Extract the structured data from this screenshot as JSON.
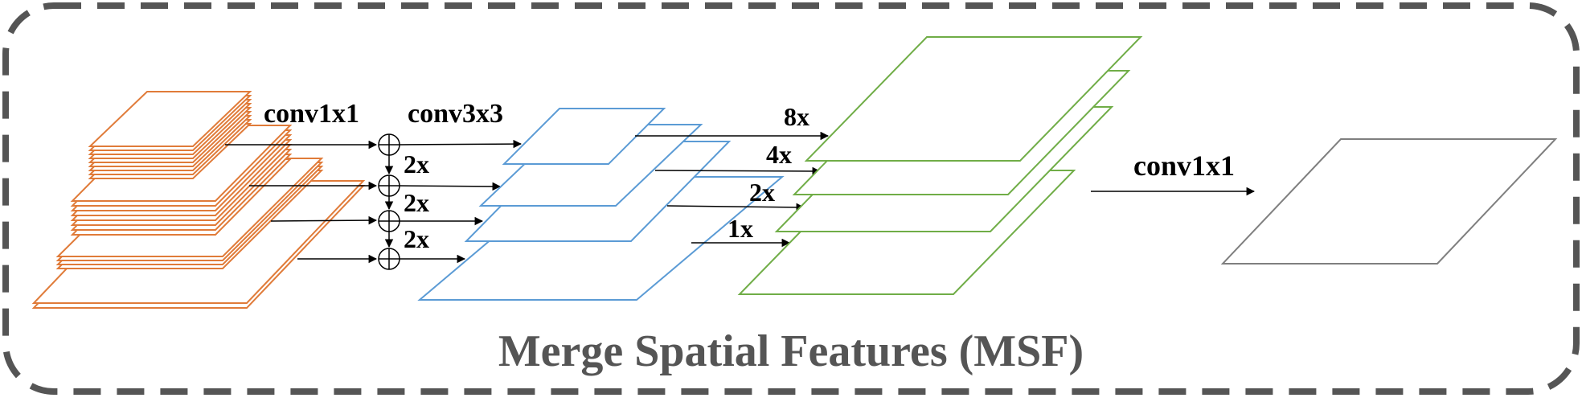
{
  "diagram": {
    "title": "Merge Spatial Features (MSF)",
    "labels": {
      "conv1x1_left": "conv1x1",
      "conv3x3": "conv3x3",
      "up_a": "2x",
      "up_b": "2x",
      "up_c": "2x",
      "scale_8x": "8x",
      "scale_4x": "4x",
      "scale_2x": "2x",
      "scale_1x": "1x",
      "conv1x1_right": "conv1x1"
    },
    "colors": {
      "border": "#555555",
      "input_features": "#e07b39",
      "conv_features": "#5b9bd5",
      "upsampled_features": "#70ad47",
      "output": "#7f7f7f",
      "arrows": "#000000",
      "title": "#555555"
    },
    "icons": {
      "add": "circle-plus-icon"
    }
  }
}
